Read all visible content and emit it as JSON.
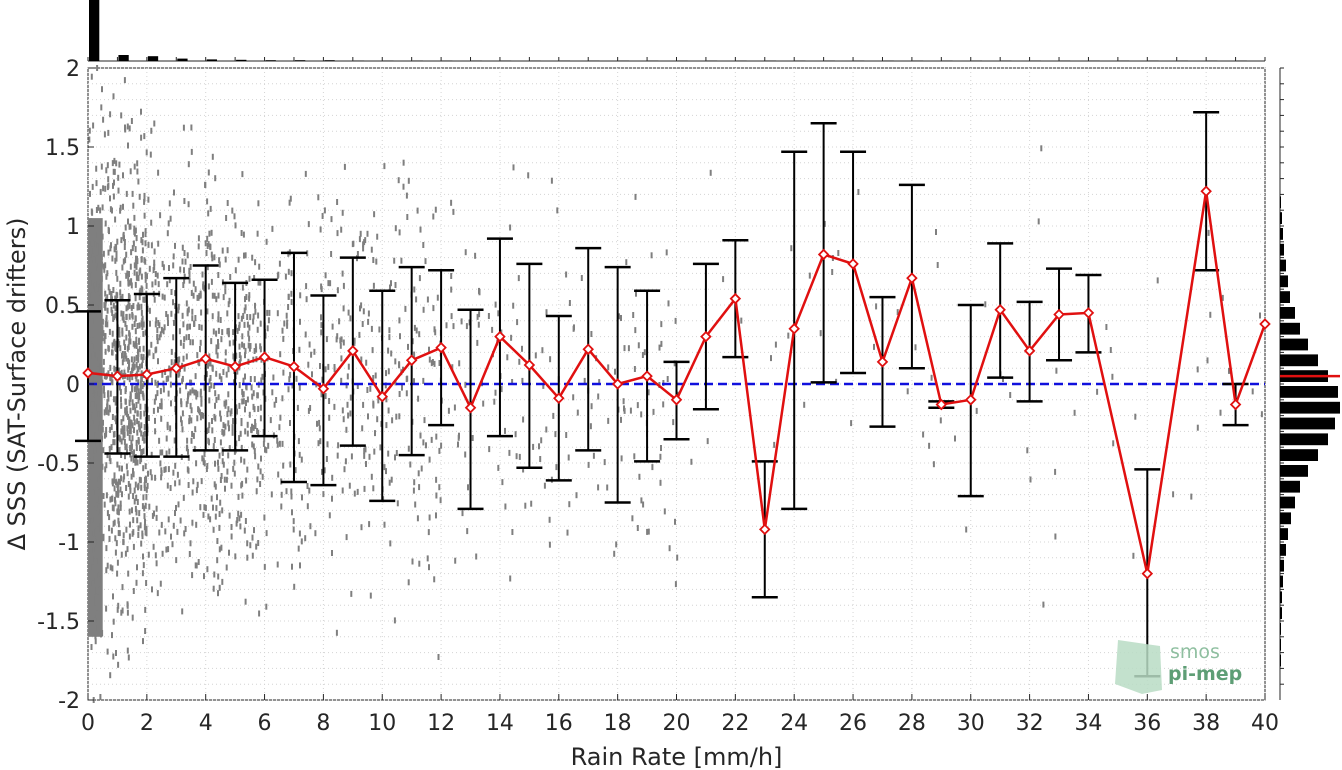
{
  "chart_data": {
    "type": "scatter",
    "xlabel": "Rain Rate [mm/h]",
    "ylabel": "Δ SSS (SAT-Surface drifters)",
    "xlim": [
      0,
      40
    ],
    "ylim": [
      -2,
      2
    ],
    "xticks": [
      "0",
      "2",
      "4",
      "6",
      "8",
      "10",
      "12",
      "14",
      "16",
      "18",
      "20",
      "22",
      "24",
      "26",
      "28",
      "30",
      "32",
      "34",
      "36",
      "38",
      "40"
    ],
    "yticks": [
      "2",
      "1.5",
      "1",
      "0.5",
      "0",
      "-0.5",
      "-1",
      "-1.5",
      "-2"
    ],
    "grid": true,
    "zero_line": {
      "y": 0,
      "color": "#1010dd",
      "style": "dashed"
    },
    "colors": {
      "mean_line": "#e01010",
      "error_bars": "#000000",
      "scatter": "#7f7f7f",
      "histogram": "#000000"
    },
    "series": [
      {
        "x": [
          0,
          1,
          2,
          3,
          4,
          5,
          6,
          7,
          8,
          9,
          10,
          11,
          12,
          13,
          14,
          15,
          16,
          17,
          18,
          19,
          20,
          21,
          22,
          23,
          24,
          25,
          26,
          27,
          28,
          29,
          30,
          31,
          32,
          33,
          34,
          36,
          38,
          39,
          40
        ],
        "mean": [
          0.07,
          0.05,
          0.06,
          0.1,
          0.16,
          0.11,
          0.17,
          0.11,
          -0.03,
          0.21,
          -0.08,
          0.15,
          0.23,
          -0.15,
          0.3,
          0.12,
          -0.09,
          0.22,
          0.0,
          0.05,
          -0.1,
          0.3,
          0.54,
          -0.92,
          0.35,
          0.82,
          0.76,
          0.14,
          0.67,
          -0.13,
          -0.1,
          0.47,
          0.21,
          0.44,
          0.45,
          -1.2,
          1.22,
          -0.13,
          0.38
        ],
        "upper": [
          0.46,
          0.53,
          0.57,
          0.67,
          0.75,
          0.64,
          0.66,
          0.83,
          0.56,
          0.8,
          0.59,
          0.74,
          0.72,
          0.47,
          0.92,
          0.76,
          0.43,
          0.86,
          0.74,
          0.59,
          0.14,
          0.76,
          0.91,
          -0.49,
          1.47,
          1.65,
          1.47,
          0.55,
          1.26,
          -0.11,
          0.5,
          0.89,
          0.52,
          0.73,
          0.69,
          -0.54,
          1.72,
          0.0,
          null
        ],
        "lower": [
          -0.36,
          -0.44,
          -0.46,
          -0.46,
          -0.42,
          -0.42,
          -0.33,
          -0.62,
          -0.64,
          -0.39,
          -0.74,
          -0.45,
          -0.26,
          -0.79,
          -0.33,
          -0.53,
          -0.61,
          -0.42,
          -0.75,
          -0.49,
          -0.35,
          -0.16,
          0.17,
          -1.35,
          -0.79,
          0.01,
          0.07,
          -0.27,
          0.1,
          -0.15,
          -0.71,
          0.04,
          -0.11,
          0.15,
          0.2,
          -1.85,
          0.72,
          -0.26,
          null
        ]
      }
    ],
    "y_histogram": {
      "bins": [
        2.0,
        1.9,
        1.8,
        1.7,
        1.6,
        1.5,
        1.4,
        1.3,
        1.2,
        1.1,
        1.0,
        0.9,
        0.8,
        0.7,
        0.6,
        0.5,
        0.4,
        0.3,
        0.2,
        0.1,
        0.0,
        -0.1,
        -0.2,
        -0.3,
        -0.4,
        -0.5,
        -0.6,
        -0.7,
        -0.8,
        -0.9,
        -1.0,
        -1.1,
        -1.2,
        -1.3,
        -1.4,
        -1.5,
        -1.6,
        -1.7,
        -1.8,
        -1.9
      ],
      "counts": [
        0,
        0,
        0,
        0,
        0,
        0,
        0,
        0,
        1,
        2,
        3,
        4,
        6,
        8,
        10,
        15,
        20,
        28,
        38,
        48,
        58,
        60,
        55,
        48,
        38,
        28,
        20,
        15,
        11,
        8,
        6,
        4,
        3,
        2,
        2,
        1,
        1,
        1,
        0,
        0
      ],
      "mean_marker": 0.05
    },
    "x_histogram": {
      "counts": [
        1000,
        40,
        12,
        6,
        4,
        3,
        2,
        2,
        2,
        1,
        1,
        1,
        1,
        1,
        1,
        1,
        1,
        1,
        1,
        1,
        1,
        1,
        1,
        1,
        1,
        1,
        1,
        1,
        1,
        1,
        1,
        1,
        1,
        1,
        1,
        1,
        1,
        1,
        1,
        1
      ]
    },
    "logo": {
      "line1": "smos",
      "line2": "pi-mep"
    }
  }
}
